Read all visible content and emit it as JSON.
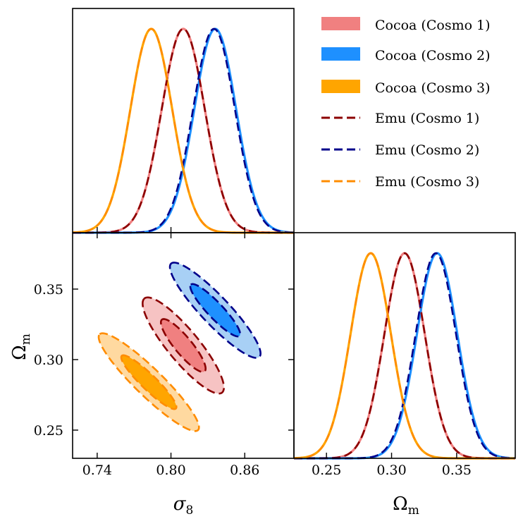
{
  "chart_data": [
    {
      "type": "line",
      "panel": "sigma8-marginal",
      "xlim": [
        0.72,
        0.9
      ],
      "ylim": [
        0,
        1.1
      ],
      "series": [
        {
          "name": "Cocoa (Cosmo 1)",
          "color": "#f08080",
          "style": "solid",
          "kind": "gaussian",
          "mean": 0.81,
          "sigma": 0.0175
        },
        {
          "name": "Cocoa (Cosmo 2)",
          "color": "#1e90ff",
          "style": "solid",
          "kind": "gaussian",
          "mean": 0.836,
          "sigma": 0.017
        },
        {
          "name": "Cocoa (Cosmo 3)",
          "color": "#ffa500",
          "style": "solid",
          "kind": "gaussian",
          "mean": 0.784,
          "sigma": 0.017
        },
        {
          "name": "Emu (Cosmo 1)",
          "color": "#8b0000",
          "style": "dashed",
          "kind": "gaussian",
          "mean": 0.81,
          "sigma": 0.0175
        },
        {
          "name": "Emu (Cosmo 2)",
          "color": "#00008b",
          "style": "dashed",
          "kind": "gaussian",
          "mean": 0.835,
          "sigma": 0.017
        },
        {
          "name": "Emu (Cosmo 3)",
          "color": "#ff8c00",
          "style": "dashed",
          "kind": "gaussian",
          "mean": 0.784,
          "sigma": 0.017
        }
      ]
    },
    {
      "type": "contour",
      "panel": "sigma8-omegam-2d",
      "xlabel": "σ",
      "xlabel_sub": "8",
      "ylabel": "Ω",
      "ylabel_sub": "m",
      "xlim": [
        0.72,
        0.9
      ],
      "ylim": [
        0.23,
        0.39
      ],
      "xticks": [
        0.74,
        0.8,
        0.86
      ],
      "xtick_labels": [
        "0.74",
        "0.80",
        "0.86"
      ],
      "yticks": [
        0.25,
        0.3,
        0.35
      ],
      "ytick_labels": [
        "0.25",
        "0.30",
        "0.35"
      ],
      "series": [
        {
          "name": "Cocoa (Cosmo 1)",
          "fill_inner": "#f08080",
          "fill_outer": "#f6c3c3",
          "edge": "#8b0000",
          "x0": 0.81,
          "y0": 0.31,
          "dx": 0.032,
          "dy": 0.033,
          "inner_scale": 0.55,
          "width": 0.26
        },
        {
          "name": "Cocoa (Cosmo 2)",
          "fill_inner": "#1e90ff",
          "fill_outer": "#a8d0f5",
          "edge": "#00008b",
          "x0": 0.836,
          "y0": 0.335,
          "dx": 0.036,
          "dy": 0.033,
          "inner_scale": 0.55,
          "width": 0.22
        },
        {
          "name": "Cocoa (Cosmo 3)",
          "fill_inner": "#ffa500",
          "fill_outer": "#ffd9a0",
          "edge": "#ff8c00",
          "x0": 0.782,
          "y0": 0.284,
          "dx": 0.04,
          "dy": 0.034,
          "inner_scale": 0.55,
          "width": 0.2
        }
      ]
    },
    {
      "type": "line",
      "panel": "omegam-marginal",
      "xlabel": "Ω",
      "xlabel_sub": "m",
      "xlim": [
        0.225,
        0.395
      ],
      "ylim": [
        0,
        1.1
      ],
      "xticks": [
        0.25,
        0.3,
        0.35
      ],
      "xtick_labels": [
        "0.25",
        "0.30",
        "0.35"
      ],
      "series": [
        {
          "name": "Cocoa (Cosmo 1)",
          "color": "#f08080",
          "style": "solid",
          "kind": "gaussian",
          "mean": 0.31,
          "sigma": 0.0155
        },
        {
          "name": "Cocoa (Cosmo 2)",
          "color": "#1e90ff",
          "style": "solid",
          "kind": "gaussian",
          "mean": 0.335,
          "sigma": 0.0155
        },
        {
          "name": "Cocoa (Cosmo 3)",
          "color": "#ffa500",
          "style": "solid",
          "kind": "gaussian",
          "mean": 0.284,
          "sigma": 0.0155
        },
        {
          "name": "Emu (Cosmo 1)",
          "color": "#8b0000",
          "style": "dashed",
          "kind": "gaussian",
          "mean": 0.31,
          "sigma": 0.0155
        },
        {
          "name": "Emu (Cosmo 2)",
          "color": "#00008b",
          "style": "dashed",
          "kind": "gaussian",
          "mean": 0.334,
          "sigma": 0.0155
        },
        {
          "name": "Emu (Cosmo 3)",
          "color": "#ff8c00",
          "style": "dashed",
          "kind": "gaussian",
          "mean": 0.284,
          "sigma": 0.0155
        }
      ]
    }
  ],
  "legend": {
    "placement": "top-right",
    "items": [
      {
        "label": "Cocoa (Cosmo 1)",
        "kind": "patch",
        "color": "#f08080"
      },
      {
        "label": "Cocoa (Cosmo 2)",
        "kind": "patch",
        "color": "#1e90ff"
      },
      {
        "label": "Cocoa (Cosmo 3)",
        "kind": "patch",
        "color": "#ffa500"
      },
      {
        "label": "Emu (Cosmo 1)",
        "kind": "dashed",
        "color": "#8b0000"
      },
      {
        "label": "Emu (Cosmo 2)",
        "kind": "dashed",
        "color": "#00008b"
      },
      {
        "label": "Emu (Cosmo 3)",
        "kind": "dashed",
        "color": "#ff8c00"
      }
    ]
  }
}
